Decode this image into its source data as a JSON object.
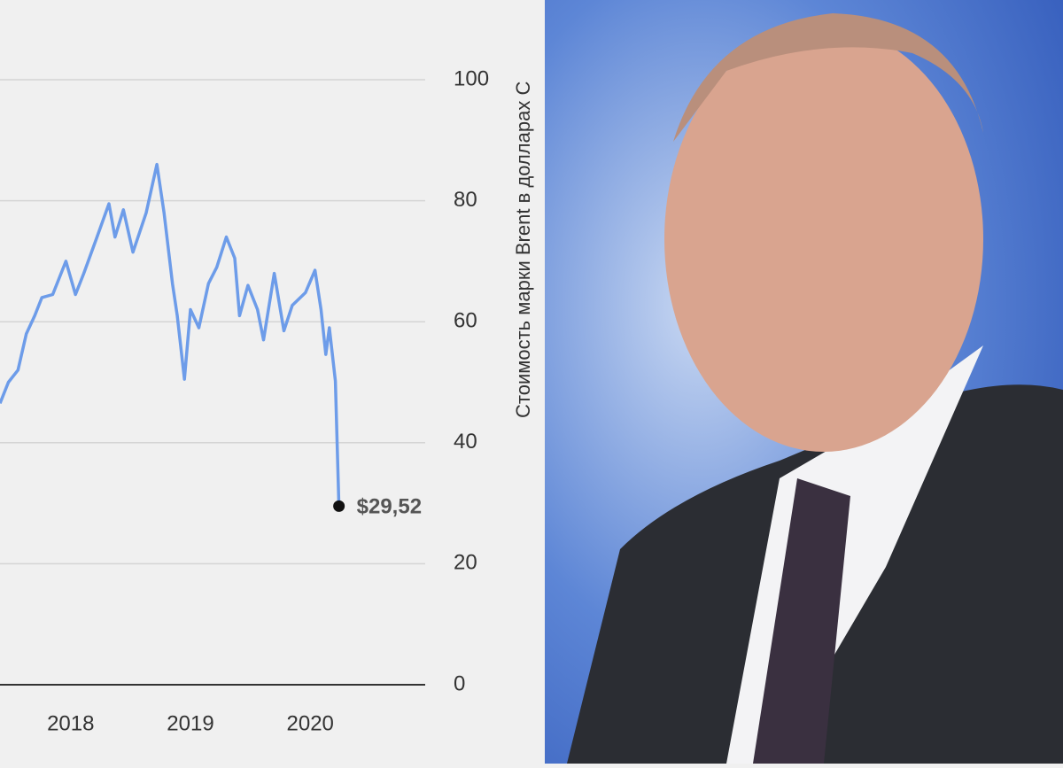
{
  "chart_data": {
    "type": "line",
    "y_axis_title": "Стоимость марки Brent в долларах С",
    "x": [
      2017.41,
      2017.48,
      2017.56,
      2017.63,
      2017.7,
      2017.76,
      2017.85,
      2017.96,
      2018.04,
      2018.11,
      2018.22,
      2018.32,
      2018.37,
      2018.44,
      2018.52,
      2018.63,
      2018.72,
      2018.78,
      2018.85,
      2018.89,
      2018.95,
      2019.0,
      2019.07,
      2019.15,
      2019.22,
      2019.3,
      2019.37,
      2019.41,
      2019.48,
      2019.56,
      2019.61,
      2019.7,
      2019.78,
      2019.85,
      2019.96,
      2020.04,
      2020.09,
      2020.13,
      2020.16,
      2020.21,
      2020.24
    ],
    "series": [
      {
        "color": "#6d9ce9",
        "values": [
          46.5,
          50,
          52,
          58,
          61,
          64,
          64.5,
          70,
          64.5,
          68,
          74,
          79.5,
          74,
          78.5,
          71.5,
          78,
          86,
          78,
          66.3,
          61,
          50.5,
          62,
          59,
          66.3,
          69,
          74,
          70.5,
          61,
          66,
          62,
          57,
          68,
          58.5,
          62.7,
          64.8,
          68.5,
          62,
          54.6,
          59,
          50.2,
          29.52
        ],
        "value_labels": [
          null,
          null,
          null,
          null,
          null,
          null,
          null,
          null,
          null,
          null,
          null,
          null,
          null,
          null,
          null,
          null,
          null,
          null,
          null,
          null,
          null,
          null,
          null,
          null,
          null,
          null,
          null,
          null,
          null,
          null,
          null,
          null,
          null,
          null,
          null,
          null,
          null,
          null,
          null,
          null,
          "$29,52"
        ]
      }
    ],
    "xlim": [
      2017.41,
      2020.96
    ],
    "xticks": [
      2018,
      2019,
      2020
    ],
    "ylim": [
      0,
      100
    ],
    "yticks": [
      0,
      20,
      40,
      60,
      80,
      100
    ],
    "grid": true
  }
}
